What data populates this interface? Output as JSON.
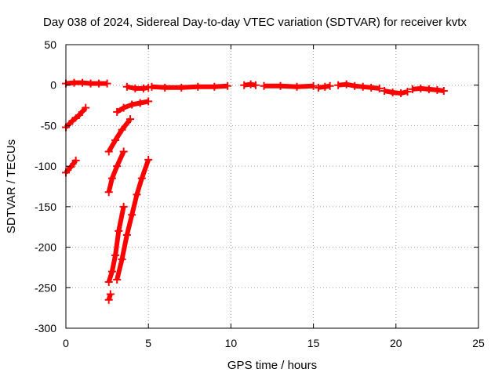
{
  "chart_data": {
    "type": "scatter",
    "title": "Day 038 of 2024, Sidereal Day-to-day VTEC variation (SDTVAR) for receiver kvtx",
    "xlabel": "GPS time / hours",
    "ylabel": "SDTVAR / TECUs",
    "xlim": [
      0,
      25
    ],
    "ylim": [
      -300,
      50
    ],
    "xticks": [
      0,
      5,
      10,
      15,
      20,
      25
    ],
    "yticks": [
      50,
      0,
      -50,
      -100,
      -150,
      -200,
      -250,
      -300
    ],
    "grid": true,
    "legend": "none",
    "series": [
      {
        "color": "#ff0000",
        "segments": [
          [
            [
              0.0,
              2
            ],
            [
              0.5,
              3
            ],
            [
              1.0,
              3
            ],
            [
              1.5,
              2
            ],
            [
              2.0,
              2
            ],
            [
              2.5,
              2
            ]
          ],
          [
            [
              3.7,
              -2
            ],
            [
              4.2,
              -4
            ],
            [
              4.7,
              -4
            ],
            [
              5.0,
              -3
            ]
          ],
          [
            [
              5.2,
              -2
            ],
            [
              6.0,
              -3
            ],
            [
              7.0,
              -3
            ],
            [
              8.0,
              -2
            ],
            [
              9.0,
              -2
            ],
            [
              9.8,
              -1
            ]
          ],
          [
            [
              10.8,
              0
            ],
            [
              11.2,
              1
            ],
            [
              11.5,
              0
            ]
          ],
          [
            [
              12.0,
              -1
            ],
            [
              13.0,
              -1
            ],
            [
              14.0,
              -2
            ],
            [
              15.0,
              -1
            ]
          ],
          [
            [
              15.3,
              -3
            ],
            [
              15.7,
              -2
            ],
            [
              16.0,
              -1
            ]
          ],
          [
            [
              16.5,
              0
            ],
            [
              17.0,
              1
            ],
            [
              17.5,
              -1
            ],
            [
              18.0,
              -2
            ],
            [
              18.5,
              -3
            ],
            [
              19.0,
              -4
            ]
          ],
          [
            [
              19.3,
              -7
            ],
            [
              19.8,
              -9
            ],
            [
              20.3,
              -10
            ],
            [
              20.7,
              -8
            ]
          ],
          [
            [
              21.0,
              -5
            ],
            [
              21.5,
              -4
            ],
            [
              22.0,
              -5
            ],
            [
              22.5,
              -6
            ],
            [
              22.9,
              -7
            ]
          ],
          [
            [
              0.0,
              -52
            ],
            [
              0.4,
              -44
            ],
            [
              0.8,
              -37
            ],
            [
              1.2,
              -28
            ]
          ],
          [
            [
              0.0,
              -108
            ],
            [
              0.3,
              -101
            ],
            [
              0.6,
              -93
            ]
          ],
          [
            [
              2.6,
              -82
            ],
            [
              3.0,
              -68
            ],
            [
              3.4,
              -55
            ],
            [
              3.9,
              -42
            ]
          ],
          [
            [
              3.1,
              -33
            ],
            [
              3.5,
              -28
            ],
            [
              4.0,
              -24
            ],
            [
              4.5,
              -22
            ],
            [
              5.0,
              -20
            ]
          ],
          [
            [
              2.6,
              -132
            ],
            [
              2.8,
              -115
            ],
            [
              3.1,
              -100
            ],
            [
              3.5,
              -82
            ]
          ],
          [
            [
              2.6,
              -243
            ],
            [
              2.8,
              -230
            ],
            [
              3.0,
              -210
            ],
            [
              3.2,
              -180
            ],
            [
              3.5,
              -150
            ]
          ],
          [
            [
              2.6,
              -265
            ],
            [
              2.7,
              -258
            ]
          ],
          [
            [
              3.1,
              -240
            ],
            [
              3.4,
              -215
            ],
            [
              3.7,
              -185
            ],
            [
              4.0,
              -160
            ],
            [
              4.3,
              -135
            ],
            [
              4.6,
              -115
            ],
            [
              5.0,
              -92
            ]
          ]
        ]
      }
    ]
  }
}
